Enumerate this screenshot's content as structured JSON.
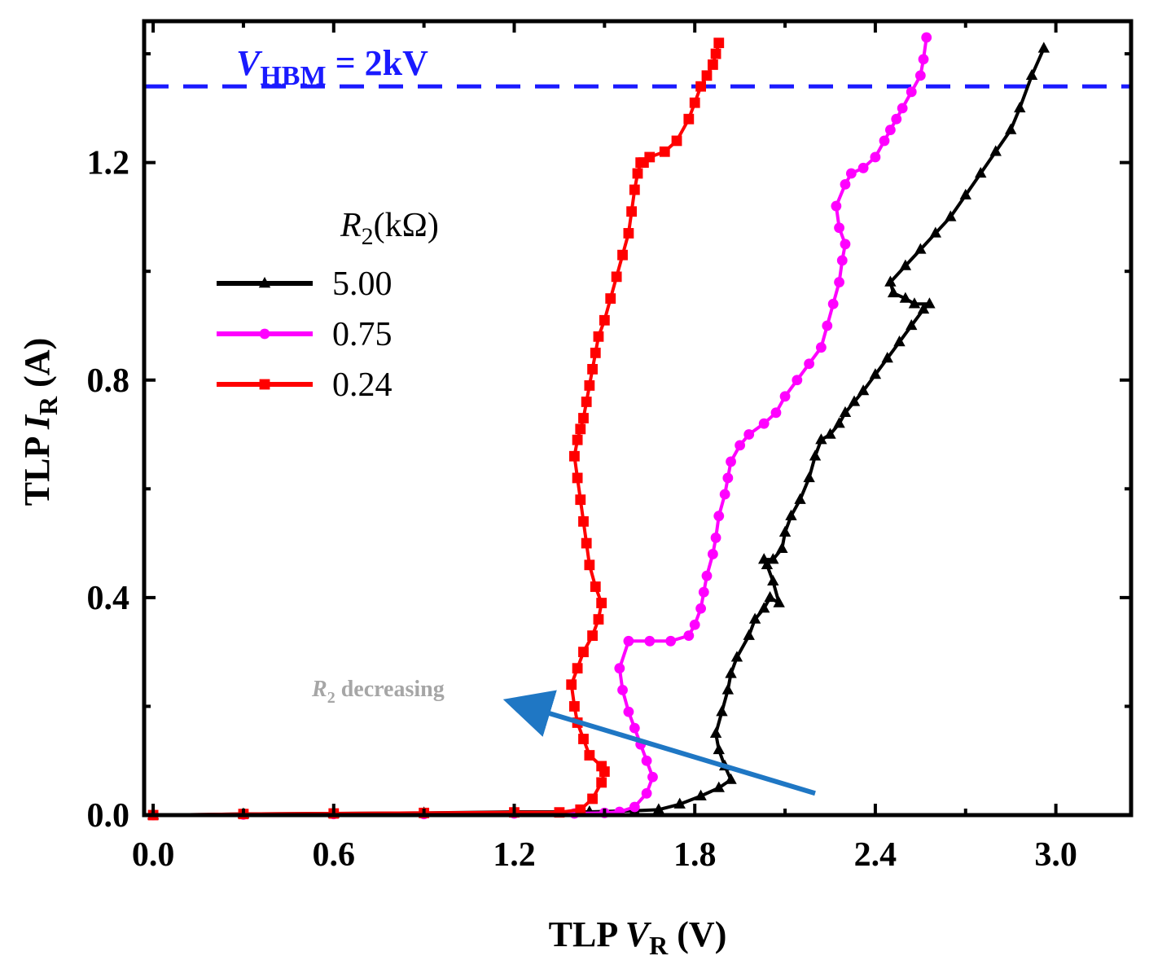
{
  "chart_data": {
    "type": "line",
    "title": "",
    "xlabel": {
      "prefix": "TLP ",
      "var": "V",
      "sub": "R",
      "suffix": " (V)"
    },
    "ylabel": {
      "prefix": "TLP ",
      "var": "I",
      "sub": "R",
      "suffix": " (A)"
    },
    "xlim": [
      -0.03,
      3.25
    ],
    "ylim": [
      0.0,
      1.46
    ],
    "xticks": [
      0.0,
      0.6,
      1.2,
      1.8,
      2.4,
      3.0
    ],
    "xtick_labels": [
      "0.0",
      "0.6",
      "1.2",
      "1.8",
      "2.4",
      "3.0"
    ],
    "yticks": [
      0.0,
      0.4,
      0.8,
      1.2
    ],
    "ytick_labels": [
      "0.0",
      "0.4",
      "0.8",
      "1.2"
    ],
    "grid": false,
    "legend": {
      "title_var": "R",
      "title_sub": "2",
      "title_suffix": "(kΩ)",
      "placement": "upper-left"
    },
    "reference_line": {
      "y": 1.34,
      "label_var": "V",
      "label_sub": "HBM",
      "label_suffix": " = 2kV",
      "color": "#1a1aff",
      "style": "dashed"
    },
    "annotation": {
      "text_var": "R",
      "text_sub": "2",
      "text_suffix": " decreasing",
      "arrow_from": [
        2.2,
        0.04
      ],
      "arrow_to": [
        1.15,
        0.22
      ],
      "color": "#1f77c4"
    },
    "series": [
      {
        "name": "5.00",
        "color": "#000000",
        "marker": "triangle",
        "x": [
          0.0,
          0.3,
          0.6,
          0.9,
          1.2,
          1.45,
          1.6,
          1.68,
          1.75,
          1.82,
          1.88,
          1.92,
          1.9,
          1.88,
          1.87,
          1.89,
          1.91,
          1.92,
          1.94,
          1.98,
          2.0,
          2.03,
          2.05,
          2.08,
          2.06,
          2.04,
          2.03,
          2.06,
          2.09,
          2.1,
          2.12,
          2.15,
          2.18,
          2.2,
          2.22,
          2.25,
          2.28,
          2.3,
          2.33,
          2.36,
          2.4,
          2.44,
          2.48,
          2.52,
          2.56,
          2.58,
          2.53,
          2.5,
          2.46,
          2.45,
          2.5,
          2.55,
          2.6,
          2.65,
          2.7,
          2.75,
          2.8,
          2.85,
          2.88,
          2.92,
          2.96
        ],
        "y": [
          0.0,
          0.002,
          0.003,
          0.004,
          0.006,
          0.006,
          0.008,
          0.01,
          0.02,
          0.035,
          0.05,
          0.065,
          0.09,
          0.12,
          0.15,
          0.19,
          0.23,
          0.26,
          0.29,
          0.33,
          0.36,
          0.38,
          0.4,
          0.39,
          0.43,
          0.46,
          0.47,
          0.47,
          0.49,
          0.52,
          0.55,
          0.58,
          0.62,
          0.66,
          0.69,
          0.7,
          0.72,
          0.74,
          0.76,
          0.78,
          0.81,
          0.84,
          0.87,
          0.9,
          0.93,
          0.94,
          0.94,
          0.95,
          0.96,
          0.98,
          1.01,
          1.04,
          1.07,
          1.1,
          1.14,
          1.18,
          1.22,
          1.26,
          1.3,
          1.36,
          1.41
        ]
      },
      {
        "name": "0.75",
        "color": "#ff00ff",
        "marker": "circle",
        "x": [
          0.0,
          0.3,
          0.6,
          0.9,
          1.2,
          1.4,
          1.5,
          1.55,
          1.6,
          1.64,
          1.66,
          1.64,
          1.62,
          1.6,
          1.58,
          1.56,
          1.55,
          1.58,
          1.65,
          1.72,
          1.78,
          1.8,
          1.82,
          1.83,
          1.84,
          1.86,
          1.87,
          1.88,
          1.9,
          1.91,
          1.92,
          1.95,
          1.98,
          2.03,
          2.07,
          2.1,
          2.14,
          2.18,
          2.22,
          2.24,
          2.26,
          2.28,
          2.29,
          2.3,
          2.28,
          2.27,
          2.3,
          2.32,
          2.36,
          2.4,
          2.43,
          2.45,
          2.47,
          2.49,
          2.52,
          2.55,
          2.56,
          2.57
        ],
        "y": [
          0.0,
          0.001,
          0.002,
          0.002,
          0.003,
          0.003,
          0.004,
          0.006,
          0.015,
          0.04,
          0.07,
          0.1,
          0.13,
          0.16,
          0.19,
          0.23,
          0.27,
          0.32,
          0.32,
          0.32,
          0.33,
          0.35,
          0.38,
          0.41,
          0.44,
          0.48,
          0.51,
          0.55,
          0.59,
          0.62,
          0.65,
          0.68,
          0.7,
          0.72,
          0.74,
          0.77,
          0.8,
          0.83,
          0.86,
          0.9,
          0.94,
          0.98,
          1.02,
          1.05,
          1.08,
          1.12,
          1.16,
          1.18,
          1.19,
          1.21,
          1.24,
          1.26,
          1.28,
          1.3,
          1.33,
          1.36,
          1.39,
          1.43
        ]
      },
      {
        "name": "0.24",
        "color": "#ff0000",
        "marker": "square",
        "x": [
          0.0,
          0.3,
          0.6,
          0.9,
          1.2,
          1.35,
          1.42,
          1.46,
          1.49,
          1.5,
          1.49,
          1.45,
          1.43,
          1.41,
          1.4,
          1.39,
          1.41,
          1.43,
          1.46,
          1.48,
          1.49,
          1.47,
          1.45,
          1.44,
          1.43,
          1.42,
          1.41,
          1.4,
          1.41,
          1.42,
          1.43,
          1.44,
          1.45,
          1.46,
          1.47,
          1.48,
          1.5,
          1.52,
          1.54,
          1.56,
          1.58,
          1.59,
          1.6,
          1.61,
          1.62,
          1.63,
          1.65,
          1.7,
          1.74,
          1.78,
          1.8,
          1.82,
          1.84,
          1.86,
          1.87,
          1.88
        ],
        "y": [
          0.0,
          0.002,
          0.003,
          0.004,
          0.005,
          0.005,
          0.01,
          0.03,
          0.06,
          0.08,
          0.09,
          0.11,
          0.14,
          0.17,
          0.2,
          0.24,
          0.27,
          0.3,
          0.33,
          0.36,
          0.39,
          0.42,
          0.46,
          0.5,
          0.54,
          0.58,
          0.62,
          0.66,
          0.69,
          0.71,
          0.73,
          0.76,
          0.79,
          0.82,
          0.85,
          0.88,
          0.91,
          0.95,
          0.99,
          1.03,
          1.07,
          1.11,
          1.15,
          1.18,
          1.2,
          1.2,
          1.21,
          1.22,
          1.24,
          1.28,
          1.31,
          1.34,
          1.36,
          1.38,
          1.4,
          1.42
        ]
      }
    ]
  }
}
